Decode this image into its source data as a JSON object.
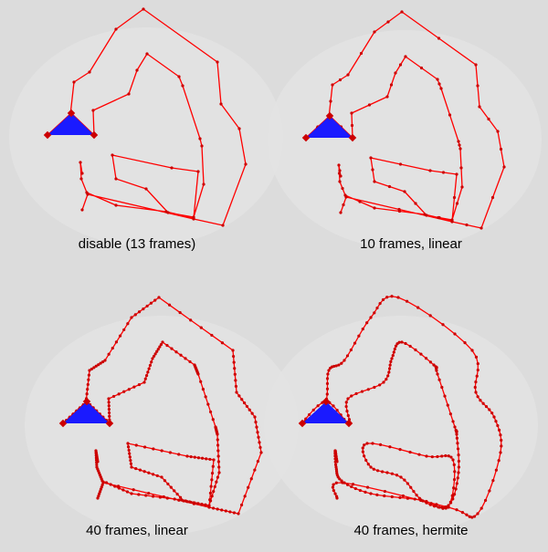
{
  "panels": [
    {
      "label": "disable (13 frames)",
      "frames": 13,
      "interpolation": "none"
    },
    {
      "label": "10 frames, linear",
      "frames": 10,
      "interpolation": "linear"
    },
    {
      "label": "40 frames, linear",
      "frames": 40,
      "interpolation": "linear"
    },
    {
      "label": "40 frames, hermite",
      "frames": 40,
      "interpolation": "hermite"
    }
  ],
  "colors": {
    "background": "#dcdcdc",
    "vignette": "#e4e4e4",
    "path": "#ff0000",
    "marker": "#cc0000",
    "triangle": "#1a1aff"
  }
}
